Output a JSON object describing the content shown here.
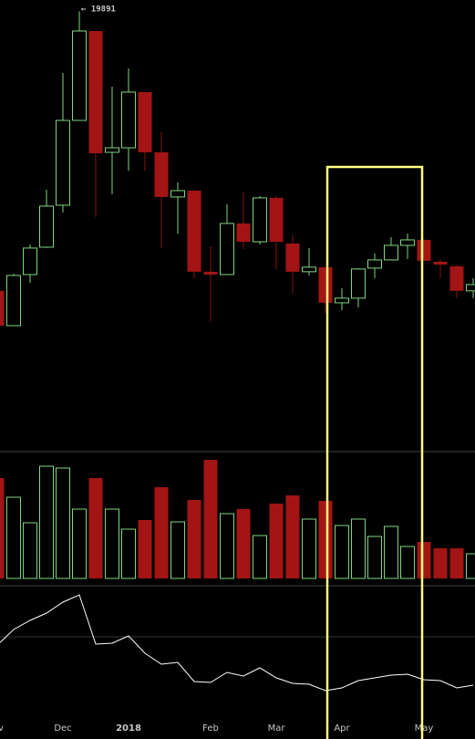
{
  "chart_data": {
    "type": "candlestick",
    "annotation": "← 19891",
    "categories": [
      "v",
      null,
      null,
      null,
      "Dec",
      null,
      null,
      null,
      "2018",
      null,
      null,
      null,
      null,
      "Feb",
      null,
      null,
      null,
      "Mar",
      null,
      null,
      null,
      "Apr",
      null,
      null,
      null,
      null,
      "May",
      null,
      null,
      null
    ],
    "open": [
      6600,
      5753,
      7039,
      7842,
      9254,
      12933,
      18404,
      11402,
      11608,
      14460,
      11402,
      9560,
      9803,
      7118,
      7039,
      8611,
      8012,
      9526,
      7956,
      7118,
      7247,
      6296,
      6413,
      7220,
      7457,
      7898,
      8070,
      7405,
      7272,
      6600
    ],
    "high": [
      6600,
      7064,
      7927,
      9838,
      15596,
      19891,
      18404,
      14775,
      15878,
      14460,
      12343,
      10125,
      9803,
      7871,
      9287,
      9768,
      9595,
      9595,
      8216,
      7815,
      7247,
      6668,
      7220,
      7648,
      8158,
      8276,
      8100,
      7457,
      7299,
      6937
    ],
    "low": [
      5753,
      5753,
      6814,
      7815,
      8992,
      12933,
      8832,
      9664,
      10610,
      10610,
      7815,
      8276,
      6937,
      5859,
      7039,
      7788,
      7927,
      7195,
      6552,
      7014,
      6051,
      6117,
      6184,
      6937,
      7457,
      7484,
      7430,
      6937,
      6413,
      6413
    ],
    "close": [
      5753,
      7014,
      7815,
      9221,
      12933,
      18404,
      11361,
      11608,
      14460,
      11402,
      9560,
      9803,
      7118,
      7039,
      8611,
      8012,
      9526,
      8012,
      7118,
      7247,
      6296,
      6413,
      7195,
      7457,
      7898,
      8070,
      7430,
      7324,
      6600,
      6766
    ],
    "ylim": [
      3500,
      20800
    ],
    "log_scale": true,
    "up_color": "#7ed67e",
    "down_color": "#a31515",
    "volume": {
      "type": "bar",
      "values": [
        110,
        89,
        61,
        123,
        121,
        76,
        110,
        76,
        54,
        64,
        100,
        62,
        86,
        130,
        71,
        76,
        47,
        82,
        91,
        65,
        85,
        58,
        65,
        46,
        57,
        35,
        40,
        33,
        33,
        27
      ],
      "ylim": [
        0,
        139
      ]
    },
    "indicator": {
      "type": "line",
      "values": [
        103,
        120,
        130,
        138,
        150,
        158,
        104,
        105,
        113,
        94,
        82,
        84,
        63,
        62,
        73,
        69,
        78,
        67,
        61,
        60,
        53,
        56,
        64,
        67,
        70,
        71,
        65,
        64,
        56,
        59
      ],
      "ylim": [
        0,
        168
      ],
      "color": "#ffffff"
    }
  }
}
